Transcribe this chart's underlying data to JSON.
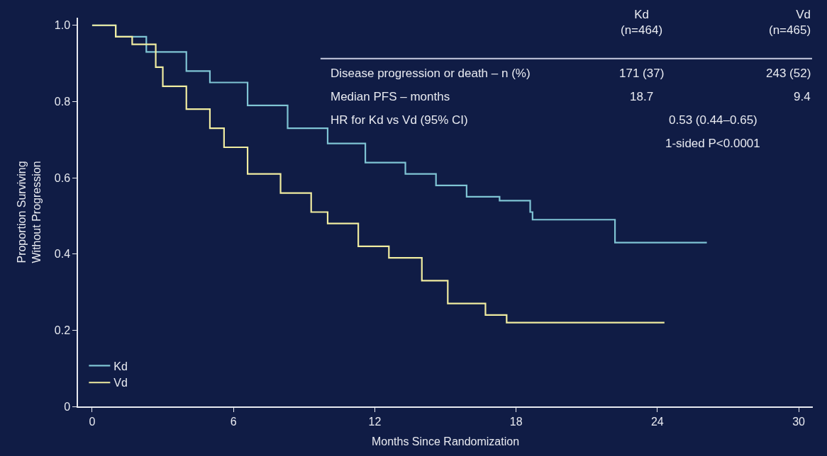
{
  "chart_data": {
    "type": "step",
    "xlabel": "Months Since Randomization",
    "ylabel": "Proportion Surviving\nWithout Progression",
    "series": [
      {
        "name": "Kd",
        "color": "#7fc4d4",
        "x": [
          0,
          1,
          2.3,
          4,
          5,
          6.6,
          8.3,
          10,
          11.6,
          13.3,
          14.6,
          15.9,
          17.3,
          18.6,
          18.7,
          22.2,
          26.1
        ],
        "values": [
          1.0,
          0.97,
          0.93,
          0.88,
          0.85,
          0.79,
          0.73,
          0.69,
          0.64,
          0.61,
          0.58,
          0.55,
          0.54,
          0.51,
          0.49,
          0.43,
          0.43
        ]
      },
      {
        "name": "Vd",
        "color": "#f0eca0",
        "x": [
          0,
          1,
          1.7,
          2.7,
          3,
          4,
          5,
          5.6,
          6.6,
          8,
          9.3,
          10,
          11.3,
          12.6,
          14,
          15.1,
          16.7,
          17.6,
          24.3
        ],
        "values": [
          1.0,
          0.97,
          0.95,
          0.89,
          0.84,
          0.78,
          0.73,
          0.68,
          0.61,
          0.56,
          0.51,
          0.48,
          0.42,
          0.39,
          0.33,
          0.27,
          0.24,
          0.22,
          0.22
        ]
      }
    ],
    "xlim": [
      -0.6,
      30.6
    ],
    "xticks": [
      0,
      6,
      12,
      18,
      24,
      30
    ],
    "ylim": [
      0,
      1.02
    ],
    "yticks": [
      0,
      0.2,
      0.4,
      0.6,
      0.8,
      {
        "value": 1.0,
        "label": "1.0"
      }
    ],
    "grid": false,
    "legend": "bottom left",
    "marker": "none",
    "line_style": "solid",
    "annotations": [
      "Kd\n(n=464)",
      "Vd\n(n=465)",
      "Disease progression or death – n (%)",
      "171 (37)",
      "243 (52)",
      "Median PFS – months",
      "18.7",
      "9.4",
      "HR for Kd vs Vd (95% CI)",
      "0.53 (0.44–0.65)",
      "1-sided P<0.0001"
    ]
  }
}
